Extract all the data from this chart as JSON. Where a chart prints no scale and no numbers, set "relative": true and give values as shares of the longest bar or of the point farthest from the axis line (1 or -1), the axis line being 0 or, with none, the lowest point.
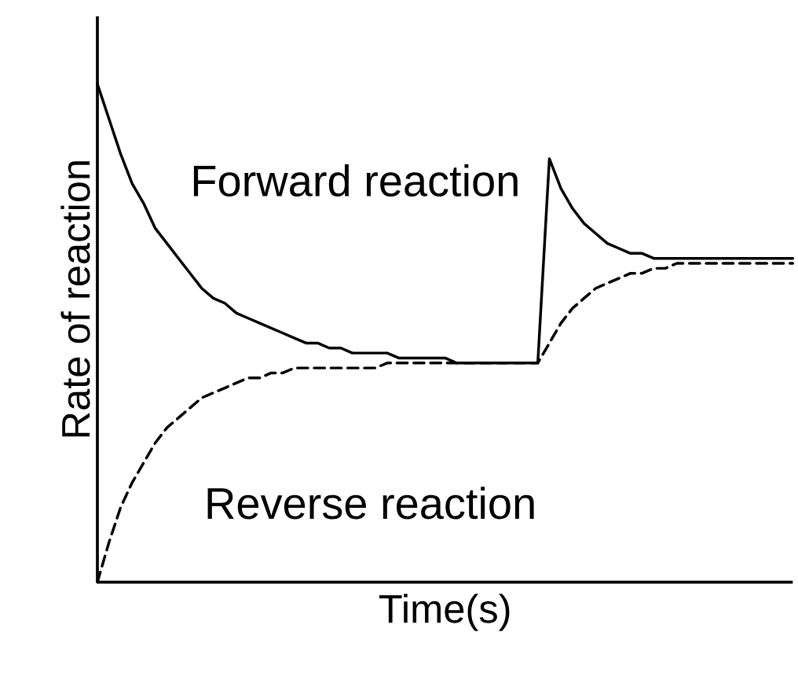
{
  "chart_data": {
    "type": "line",
    "relative": true,
    "xlabel": "Time(s)",
    "ylabel": "Rate of reaction",
    "categories": [
      null,
      null,
      null,
      null,
      null,
      null,
      null,
      null,
      null,
      null,
      null,
      null,
      null,
      null,
      null,
      null,
      null,
      null,
      null,
      null,
      null,
      null,
      null,
      null,
      null,
      null,
      null,
      null,
      null,
      null,
      null,
      null,
      null,
      null,
      null,
      null,
      null,
      null,
      null,
      null,
      null,
      null,
      null,
      null,
      null,
      null,
      null,
      null,
      null,
      null,
      null,
      null,
      null,
      null,
      null,
      null,
      null,
      null,
      null,
      null,
      null
    ],
    "series": [
      {
        "name": "Forward reaction",
        "color": "#000000",
        "line_style": "solid",
        "values": [
          1.0,
          0.93,
          0.86,
          0.8,
          0.76,
          0.71,
          0.68,
          0.65,
          0.62,
          0.59,
          0.57,
          0.56,
          0.54,
          0.53,
          0.52,
          0.51,
          0.5,
          0.49,
          0.48,
          0.48,
          0.47,
          0.47,
          0.46,
          0.46,
          0.46,
          0.46,
          0.45,
          0.45,
          0.45,
          0.45,
          0.45,
          0.44,
          0.44,
          0.44,
          0.44,
          0.44,
          0.44,
          0.44,
          0.44,
          0.85,
          0.79,
          0.75,
          0.72,
          0.7,
          0.68,
          0.67,
          0.66,
          0.66,
          0.65,
          0.65,
          0.65,
          0.65,
          0.65,
          0.65,
          0.65,
          0.65,
          0.65,
          0.65,
          0.65,
          0.65,
          0.65
        ]
      },
      {
        "name": "Reverse reaction",
        "color": "#000000",
        "line_style": "dashed",
        "values": [
          0.0,
          0.08,
          0.15,
          0.2,
          0.24,
          0.28,
          0.31,
          0.33,
          0.35,
          0.37,
          0.38,
          0.39,
          0.4,
          0.41,
          0.41,
          0.42,
          0.42,
          0.43,
          0.43,
          0.43,
          0.43,
          0.43,
          0.43,
          0.43,
          0.43,
          0.44,
          0.44,
          0.44,
          0.44,
          0.44,
          0.44,
          0.44,
          0.44,
          0.44,
          0.44,
          0.44,
          0.44,
          0.44,
          0.44,
          0.48,
          0.52,
          0.55,
          0.57,
          0.59,
          0.6,
          0.61,
          0.62,
          0.62,
          0.63,
          0.63,
          0.64,
          0.64,
          0.64,
          0.64,
          0.64,
          0.64,
          0.64,
          0.64,
          0.64,
          0.64,
          0.64
        ]
      }
    ]
  }
}
